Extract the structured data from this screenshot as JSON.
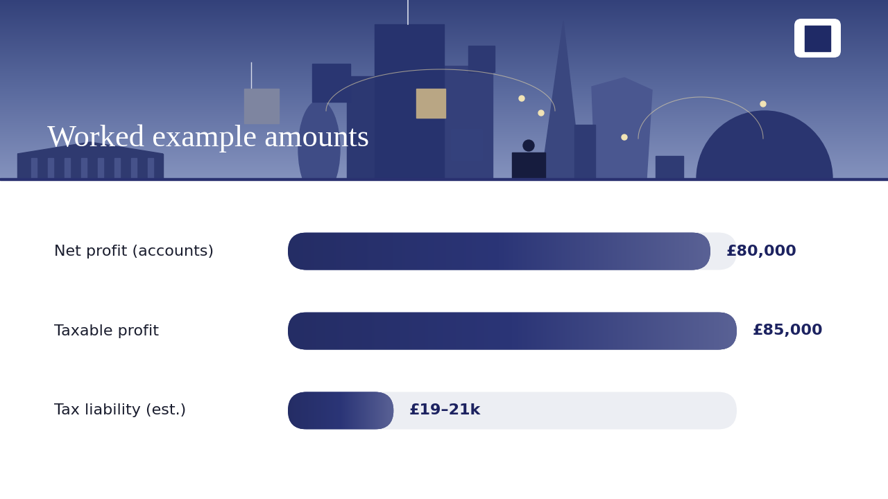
{
  "chart_data": {
    "type": "bar",
    "orientation": "horizontal",
    "title": "Worked example amounts",
    "categories": [
      "Net profit (accounts)",
      "Taxable profit",
      "Tax liability (est.)"
    ],
    "values": [
      80000,
      85000,
      20000
    ],
    "value_labels": [
      "£80,000",
      "£85,000",
      "£19–21k"
    ],
    "data_labels": true,
    "color": "#2b3577",
    "xlim": [
      0,
      85000
    ],
    "xticks": [],
    "tick_labels": false,
    "grid": false
  }
}
